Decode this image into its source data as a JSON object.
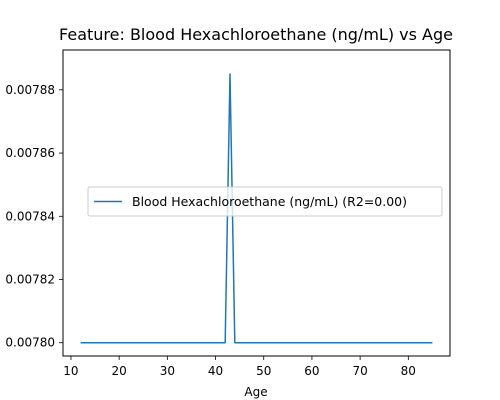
{
  "chart_data": {
    "type": "line",
    "title": "Feature: Blood Hexachloroethane (ng/mL) vs Age",
    "xlabel": "Age",
    "ylabel": "",
    "xlim": [
      8.35,
      88.65
    ],
    "ylim": [
      0.0077958,
      0.0078926
    ],
    "xticks": [
      10,
      20,
      30,
      40,
      50,
      60,
      70,
      80
    ],
    "xtick_labels": [
      "10",
      "20",
      "30",
      "40",
      "50",
      "60",
      "70",
      "80"
    ],
    "yticks": [
      0.0078,
      0.00782,
      0.00784,
      0.00786,
      0.00788
    ],
    "ytick_labels": [
      "0.00780",
      "0.00782",
      "0.00784",
      "0.00786",
      "0.00788"
    ],
    "grid": false,
    "legend": "center-right",
    "series": [
      {
        "name": "Blood Hexachloroethane (ng/mL) (R2=0.00)",
        "color": "#1f77b4",
        "x": [
          12,
          42,
          43,
          44,
          85
        ],
        "y": [
          0.0078,
          0.0078,
          0.007885,
          0.0078,
          0.0078
        ]
      }
    ]
  }
}
